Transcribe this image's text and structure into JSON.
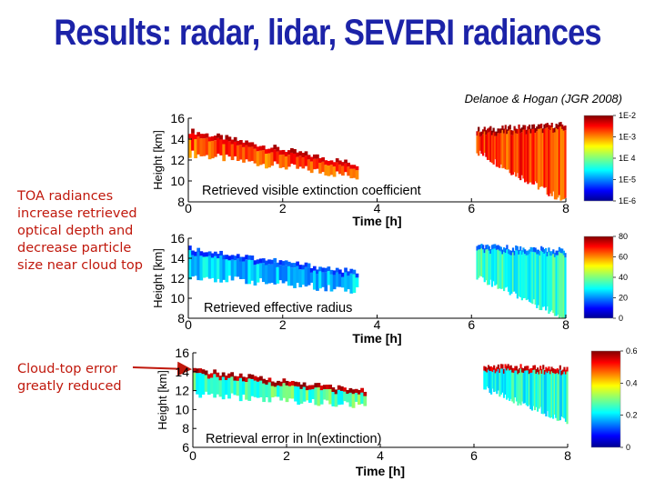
{
  "slide": {
    "title": "Results: radar, lidar, SEVERI radiances",
    "citation": "Delanoe & Hogan (JGR 2008)",
    "note_top": "TOA radiances increase retrieved optical depth and decrease particle size near cloud top",
    "note_bottom": "Cloud-top error greatly reduced",
    "colors": {
      "title": "#1c23a8",
      "notes": "#c0180c",
      "arrow": "#c0180c"
    }
  },
  "chart_data": [
    {
      "type": "heatmap",
      "title": "Retrieved visible extinction coefficient",
      "xlabel": "Time [h]",
      "ylabel": "Height [km]",
      "xlim": [
        0,
        8
      ],
      "ylim": [
        8,
        16
      ],
      "x_ticks": [
        "0",
        "2",
        "4",
        "6",
        "8"
      ],
      "y_ticks": [
        "8",
        "10",
        "12",
        "14",
        "16"
      ],
      "colorbar": {
        "ticks": [
          "1E-2",
          "1E-3",
          "1E 4",
          "1E-5",
          "1E-6"
        ],
        "scale": "log"
      },
      "fields": [
        {
          "x0": 0.0,
          "x1": 3.6,
          "top0": 14.8,
          "top1": 11.6,
          "base0": 12.6,
          "base1": 10.4,
          "core": 0.8,
          "top_band": 0.92
        },
        {
          "x0": 6.1,
          "x1": 8.0,
          "top0": 14.9,
          "top1": 15.4,
          "base0": 12.8,
          "base1": 8.0,
          "core": 0.82,
          "top_band": 0.97
        }
      ]
    },
    {
      "type": "heatmap",
      "title": "Retrieved effective radius",
      "xlabel": "Time [h]",
      "ylabel": "Height [km]",
      "xlim": [
        0,
        8
      ],
      "ylim": [
        8,
        16
      ],
      "x_ticks": [
        "0",
        "2",
        "4",
        "6",
        "8"
      ],
      "y_ticks": [
        "8",
        "10",
        "12",
        "14",
        "16"
      ],
      "colorbar": {
        "ticks": [
          "80",
          "60",
          "40",
          "20",
          "0"
        ],
        "scale": "linear"
      },
      "fields": [
        {
          "x0": 0.0,
          "x1": 3.6,
          "top0": 15.0,
          "top1": 12.6,
          "base0": 12.2,
          "base1": 10.8,
          "core": 0.32,
          "top_band": 0.2
        },
        {
          "x0": 6.1,
          "x1": 8.0,
          "top0": 15.2,
          "top1": 14.8,
          "base0": 12.2,
          "base1": 8.0,
          "core": 0.42,
          "top_band": 0.25
        }
      ]
    },
    {
      "type": "heatmap",
      "title": "Retrieval error in ln(extinction)",
      "xlabel": "Time [h]",
      "ylabel": "Height [km]",
      "xlim": [
        0,
        8
      ],
      "ylim": [
        6,
        16
      ],
      "x_ticks": [
        "0",
        "2",
        "4",
        "6",
        "8"
      ],
      "y_ticks": [
        "6",
        "8",
        "10",
        "12",
        "14",
        "16"
      ],
      "colorbar": {
        "ticks": [
          "0.6",
          "0.4",
          "0.2",
          "0"
        ],
        "scale": "linear"
      },
      "fields": [
        {
          "x0": 0.0,
          "x1": 3.7,
          "top0": 14.2,
          "top1": 12.0,
          "base0": 11.6,
          "base1": 10.4,
          "core": 0.45,
          "top_band": 0.95
        },
        {
          "x0": 6.2,
          "x1": 8.0,
          "top0": 14.6,
          "top1": 14.4,
          "base0": 12.2,
          "base1": 8.8,
          "core": 0.4,
          "top_band": 0.92
        }
      ]
    }
  ]
}
